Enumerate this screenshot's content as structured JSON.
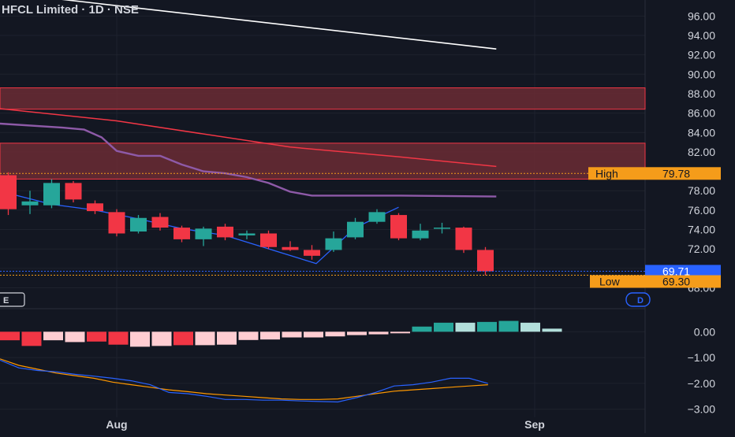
{
  "header": {
    "symbol_title": "HFCL Limited · 1D · NSE"
  },
  "theme": {
    "background": "#131722",
    "grid": "#1e222d",
    "text": "#d1d4dc",
    "up": "#26a69a",
    "down": "#f23645",
    "zone_fill": "#6b2b34",
    "zone_border": "#f23645",
    "purple": "#8e5aa8",
    "ma_red": "#f23645",
    "white_line": "#ffffff",
    "blue": "#2962ff",
    "orange": "#ff9800",
    "label_orange": "#f59c1a",
    "price_blue": "#2962ff"
  },
  "pane_controls": {
    "left_tag": "E",
    "right_tag": "D"
  },
  "chart_data": {
    "type": "candlestick",
    "x_ticks": [
      "Aug",
      "Sep"
    ],
    "price_ticks": [
      "96.00",
      "94.00",
      "92.00",
      "90.00",
      "88.00",
      "86.00",
      "84.00",
      "82.00",
      "80.00",
      "78.00",
      "76.00",
      "74.00",
      "72.00",
      "70.00",
      "68.00"
    ],
    "y_range": [
      67.8,
      97.0
    ],
    "candles": [
      {
        "o": 79.6,
        "h": 79.9,
        "l": 75.5,
        "c": 76.1
      },
      {
        "o": 76.5,
        "h": 78.0,
        "l": 75.6,
        "c": 76.9
      },
      {
        "o": 76.5,
        "h": 79.2,
        "l": 76.2,
        "c": 78.8
      },
      {
        "o": 78.8,
        "h": 79.0,
        "l": 76.8,
        "c": 77.1
      },
      {
        "o": 76.7,
        "h": 77.0,
        "l": 75.6,
        "c": 75.9
      },
      {
        "o": 75.8,
        "h": 76.1,
        "l": 73.3,
        "c": 73.6
      },
      {
        "o": 73.8,
        "h": 75.5,
        "l": 73.6,
        "c": 75.2
      },
      {
        "o": 75.3,
        "h": 75.7,
        "l": 73.9,
        "c": 74.2
      },
      {
        "o": 74.2,
        "h": 74.4,
        "l": 72.7,
        "c": 73.0
      },
      {
        "o": 73.0,
        "h": 74.3,
        "l": 72.3,
        "c": 74.1
      },
      {
        "o": 74.3,
        "h": 74.6,
        "l": 72.9,
        "c": 73.2
      },
      {
        "o": 73.4,
        "h": 73.9,
        "l": 73.0,
        "c": 73.6
      },
      {
        "o": 73.6,
        "h": 73.9,
        "l": 72.0,
        "c": 72.2
      },
      {
        "o": 72.2,
        "h": 72.8,
        "l": 71.8,
        "c": 71.9
      },
      {
        "o": 71.9,
        "h": 72.4,
        "l": 70.9,
        "c": 71.3
      },
      {
        "o": 71.9,
        "h": 73.8,
        "l": 71.7,
        "c": 73.1
      },
      {
        "o": 73.2,
        "h": 75.2,
        "l": 73.0,
        "c": 74.8
      },
      {
        "o": 74.8,
        "h": 76.1,
        "l": 74.6,
        "c": 75.8
      },
      {
        "o": 75.5,
        "h": 75.7,
        "l": 72.9,
        "c": 73.1
      },
      {
        "o": 73.1,
        "h": 74.6,
        "l": 72.9,
        "c": 73.9
      },
      {
        "o": 74.1,
        "h": 74.7,
        "l": 73.6,
        "c": 74.2
      },
      {
        "o": 74.2,
        "h": 74.3,
        "l": 71.6,
        "c": 71.9
      },
      {
        "o": 71.9,
        "h": 72.2,
        "l": 69.3,
        "c": 69.7
      }
    ],
    "zones": [
      {
        "top": 88.6,
        "bottom": 86.4
      },
      {
        "top": 82.9,
        "bottom": 79.2
      }
    ],
    "high_line": 79.78,
    "low_line": 69.3,
    "last_price_line": 69.71,
    "white_trend": [
      [
        -1,
        98.6
      ],
      [
        22.5,
        92.6
      ]
    ],
    "red_ma": [
      [
        -1,
        86.6
      ],
      [
        5,
        85.2
      ],
      [
        13,
        82.5
      ],
      [
        18,
        81.5
      ],
      [
        22.5,
        80.5
      ]
    ],
    "purple_line": [
      [
        -1,
        85.0
      ],
      [
        2.5,
        84.5
      ],
      [
        3.5,
        84.3
      ],
      [
        4.3,
        83.5
      ],
      [
        5,
        82.1
      ],
      [
        6,
        81.6
      ],
      [
        7,
        81.6
      ],
      [
        8,
        80.7
      ],
      [
        9,
        80.0
      ],
      [
        10,
        79.8
      ],
      [
        11,
        79.4
      ],
      [
        12,
        78.8
      ],
      [
        13,
        77.9
      ],
      [
        14,
        77.5
      ],
      [
        18,
        77.5
      ],
      [
        22.5,
        77.4
      ]
    ],
    "blue_zigzag": [
      [
        -1,
        78.3
      ],
      [
        2,
        76.6
      ],
      [
        4,
        76.0
      ],
      [
        6,
        75.1
      ],
      [
        8,
        74.1
      ],
      [
        10,
        73.4
      ],
      [
        14.2,
        70.5
      ],
      [
        16,
        74.2
      ],
      [
        18,
        76.3
      ]
    ],
    "price_labels": [
      {
        "label": "High",
        "value": "79.78"
      },
      {
        "label": "",
        "value": "69.71"
      },
      {
        "label": "Low",
        "value": "69.30"
      }
    ],
    "indicator": {
      "ticks": [
        "0.00",
        "−1.00",
        "−2.00",
        "−3.00"
      ],
      "y_range": [
        -3.1,
        0.65
      ],
      "histogram": [
        -0.33,
        -0.55,
        -0.33,
        -0.4,
        -0.38,
        -0.5,
        -0.58,
        -0.55,
        -0.52,
        -0.52,
        -0.5,
        -0.32,
        -0.3,
        -0.22,
        -0.22,
        -0.18,
        -0.13,
        -0.1,
        -0.06,
        0.2,
        0.35,
        0.35,
        0.38,
        0.42,
        0.35,
        0.12
      ],
      "histogram_colors": [
        "#f23645",
        "#f23645",
        "#ffcdd2",
        "#ffcdd2",
        "#f23645",
        "#f23645",
        "#ffcdd2",
        "#ffcdd2",
        "#f23645",
        "#ffcdd2",
        "#ffcdd2",
        "#ffcdd2",
        "#ffcdd2",
        "#ffcdd2",
        "#ffcdd2",
        "#ffcdd2",
        "#ffcdd2",
        "#ffcdd2",
        "#ffcdd2",
        "#26a69a",
        "#26a69a",
        "#b2dfdb",
        "#26a69a",
        "#26a69a",
        "#b2dfdb",
        "#b2dfdb"
      ],
      "blue_line": [
        -1.1,
        -1.4,
        -1.5,
        -1.55,
        -1.65,
        -1.72,
        -1.8,
        -1.9,
        -2.05,
        -2.35,
        -2.4,
        -2.5,
        -2.62,
        -2.62,
        -2.65,
        -2.65,
        -2.68,
        -2.7,
        -2.72,
        -2.55,
        -2.35,
        -2.1,
        -2.05,
        -1.95,
        -1.8,
        -1.8,
        -2.0
      ],
      "orange_line": [
        -1.05,
        -1.3,
        -1.45,
        -1.6,
        -1.7,
        -1.8,
        -1.95,
        -2.05,
        -2.15,
        -2.25,
        -2.32,
        -2.4,
        -2.45,
        -2.5,
        -2.55,
        -2.6,
        -2.62,
        -2.62,
        -2.6,
        -2.5,
        -2.4,
        -2.3,
        -2.25,
        -2.2,
        -2.15,
        -2.1,
        -2.05
      ]
    }
  }
}
